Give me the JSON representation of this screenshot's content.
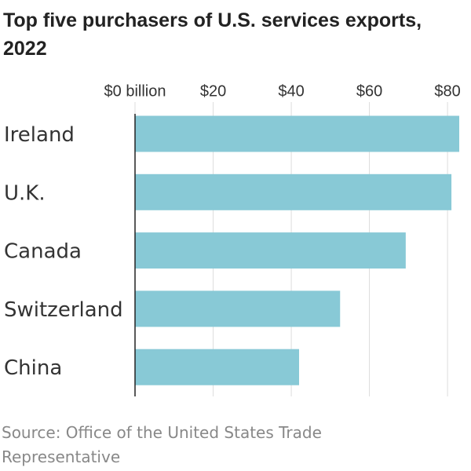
{
  "chart_data": {
    "type": "hbar",
    "title": "Top five purchasers of U.S. services exports, 2022",
    "source": "Source: Office of the United States Trade Representative",
    "categories": [
      "Ireland",
      "U.K.",
      "Canada",
      "Switzerland",
      "China"
    ],
    "values": [
      83,
      81,
      69.3,
      52.5,
      42
    ],
    "color": "#88c9d6",
    "xlim": [
      0,
      84
    ],
    "xticks": [
      {
        "value": 0,
        "label": "$0 billion"
      },
      {
        "value": 20,
        "label": "$20"
      },
      {
        "value": 40,
        "label": "$40"
      },
      {
        "value": 60,
        "label": "$60"
      },
      {
        "value": 80,
        "label": "$80"
      }
    ],
    "grid": true
  }
}
